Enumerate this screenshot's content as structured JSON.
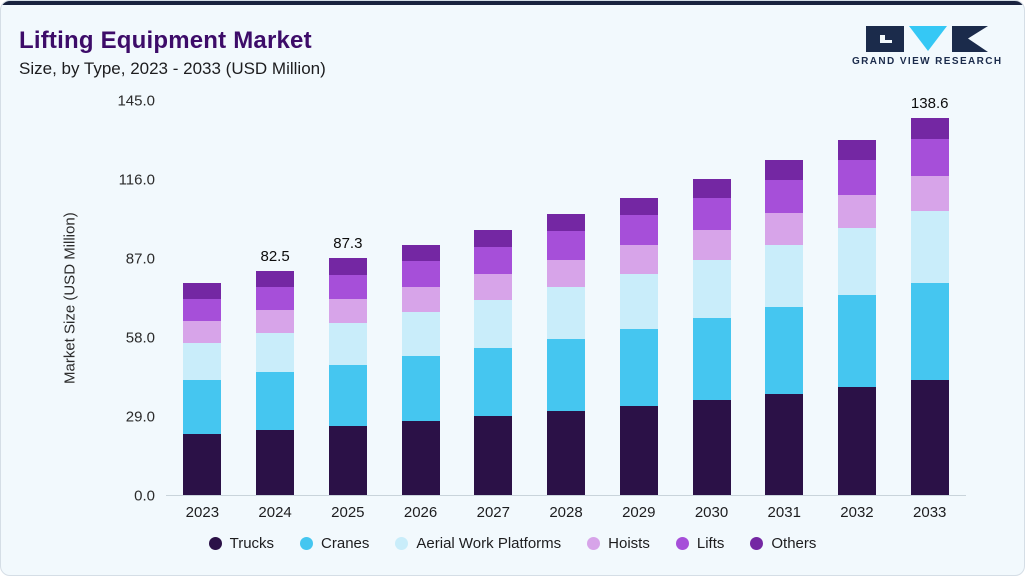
{
  "header": {
    "title": "Lifting Equipment Market",
    "subtitle": "Size, by Type, 2023 - 2033 (USD Million)",
    "brand_name": "GRAND VIEW RESEARCH"
  },
  "colors": {
    "accent_navy": "#1b2b4b",
    "accent_cyan": "#35c8f5",
    "title_purple": "#3d0c69",
    "background": "#f2f9fd"
  },
  "chart_data": {
    "type": "bar",
    "stacked": true,
    "title": "Lifting Equipment Market",
    "subtitle": "Size, by Type, 2023 - 2033 (USD Million)",
    "ylabel": "Market Size (USD Million)",
    "ylim": [
      0,
      145
    ],
    "yticks": [
      "0.0",
      "29.0",
      "58.0",
      "87.0",
      "116.0",
      "145.0"
    ],
    "grid": false,
    "legend_position": "bottom",
    "categories": [
      "2023",
      "2024",
      "2025",
      "2026",
      "2027",
      "2028",
      "2029",
      "2030",
      "2031",
      "2032",
      "2033"
    ],
    "series": [
      {
        "name": "Trucks",
        "color": "#2b1147",
        "values": [
          22.5,
          24.0,
          25.5,
          27.2,
          29.0,
          30.9,
          32.9,
          35.0,
          37.3,
          39.8,
          42.4
        ]
      },
      {
        "name": "Cranes",
        "color": "#45c6f0",
        "values": [
          20.0,
          21.2,
          22.4,
          23.8,
          25.2,
          26.7,
          28.3,
          30.0,
          31.8,
          33.7,
          35.7
        ]
      },
      {
        "name": "Aerial Work Platforms",
        "color": "#c9edfa",
        "values": [
          13.5,
          14.4,
          15.4,
          16.5,
          17.6,
          18.8,
          20.1,
          21.5,
          23.0,
          24.6,
          26.3
        ]
      },
      {
        "name": "Hoists",
        "color": "#d7a4e9",
        "values": [
          8.0,
          8.4,
          8.8,
          9.2,
          9.7,
          10.2,
          10.7,
          11.2,
          11.8,
          12.4,
          13.0
        ]
      },
      {
        "name": "Lifts",
        "color": "#a64fd9",
        "values": [
          8.0,
          8.4,
          8.9,
          9.4,
          9.9,
          10.4,
          11.0,
          11.6,
          12.2,
          12.8,
          13.5
        ]
      },
      {
        "name": "Others",
        "color": "#7427a3",
        "values": [
          6.0,
          6.1,
          6.3,
          6.1,
          6.2,
          6.4,
          6.5,
          6.9,
          7.2,
          7.4,
          7.7
        ]
      }
    ],
    "totals": [
      78.0,
      82.5,
      87.3,
      92.2,
      97.6,
      103.4,
      109.5,
      116.2,
      123.3,
      130.7,
      138.6
    ],
    "bar_labels": {
      "2024": "82.5",
      "2025": "87.3",
      "2033": "138.6"
    }
  }
}
